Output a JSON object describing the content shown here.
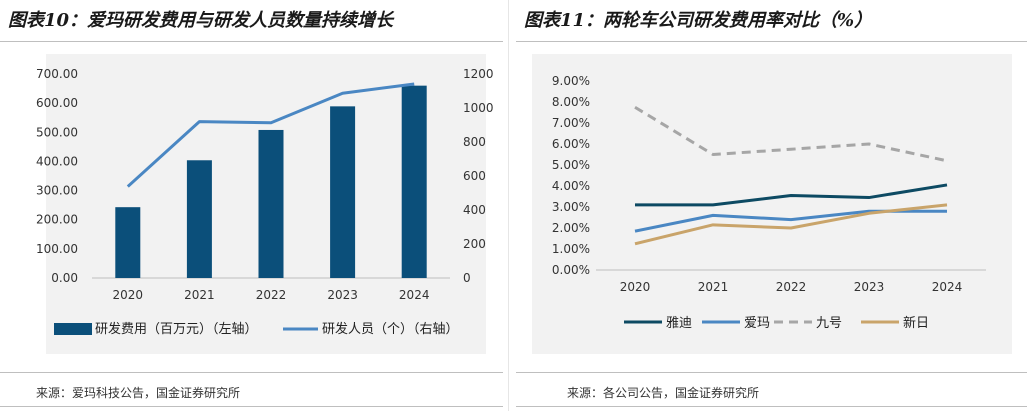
{
  "left": {
    "title": "图表10：爱玛研发费用与研发人员数量持续增长",
    "source": "来源：爱玛科技公告，国金证券研究所"
  },
  "right": {
    "title": "图表11：两轮车公司研发费用率对比（%）",
    "source": "来源：各公司公告，国金证券研究所"
  },
  "chart_data": [
    {
      "type": "bar+line",
      "categories": [
        "2020",
        "2021",
        "2022",
        "2023",
        "2024"
      ],
      "series": [
        {
          "name": "研发费用（百万元）（左轴）",
          "type": "bar",
          "axis": "left",
          "color": "#0b4f7a",
          "values": [
            243,
            404,
            508,
            589,
            660
          ]
        },
        {
          "name": "研发人员（个）（右轴）",
          "type": "line",
          "axis": "right",
          "color": "#4a87c3",
          "values": [
            538,
            920,
            913,
            1087,
            1141
          ]
        }
      ],
      "y_left": {
        "min": 0,
        "max": 700,
        "ticks": [
          "0.00",
          "100.00",
          "200.00",
          "300.00",
          "400.00",
          "500.00",
          "600.00",
          "700.00"
        ]
      },
      "y_right": {
        "min": 0,
        "max": 1200,
        "ticks": [
          "0",
          "200",
          "400",
          "600",
          "800",
          "1000",
          "1200"
        ]
      },
      "legend": "bottom"
    },
    {
      "type": "line",
      "categories": [
        "2020",
        "2021",
        "2022",
        "2023",
        "2024"
      ],
      "series": [
        {
          "name": "雅迪",
          "color": "#0d4a63",
          "dash": false,
          "values": [
            3.1,
            3.1,
            3.55,
            3.45,
            4.05
          ]
        },
        {
          "name": "爱玛",
          "color": "#4a87c3",
          "dash": false,
          "values": [
            1.85,
            2.6,
            2.4,
            2.8,
            2.8
          ]
        },
        {
          "name": "九号",
          "color": "#a6a6a6",
          "dash": true,
          "values": [
            7.75,
            5.5,
            5.75,
            6.0,
            5.2
          ]
        },
        {
          "name": "新日",
          "color": "#c9a46a",
          "dash": false,
          "values": [
            1.25,
            2.15,
            2.0,
            2.7,
            3.1
          ]
        }
      ],
      "y": {
        "min": 0,
        "max": 9,
        "ticks": [
          "0.00%",
          "1.00%",
          "2.00%",
          "3.00%",
          "4.00%",
          "5.00%",
          "6.00%",
          "7.00%",
          "8.00%",
          "9.00%"
        ]
      },
      "legend": "bottom"
    }
  ]
}
